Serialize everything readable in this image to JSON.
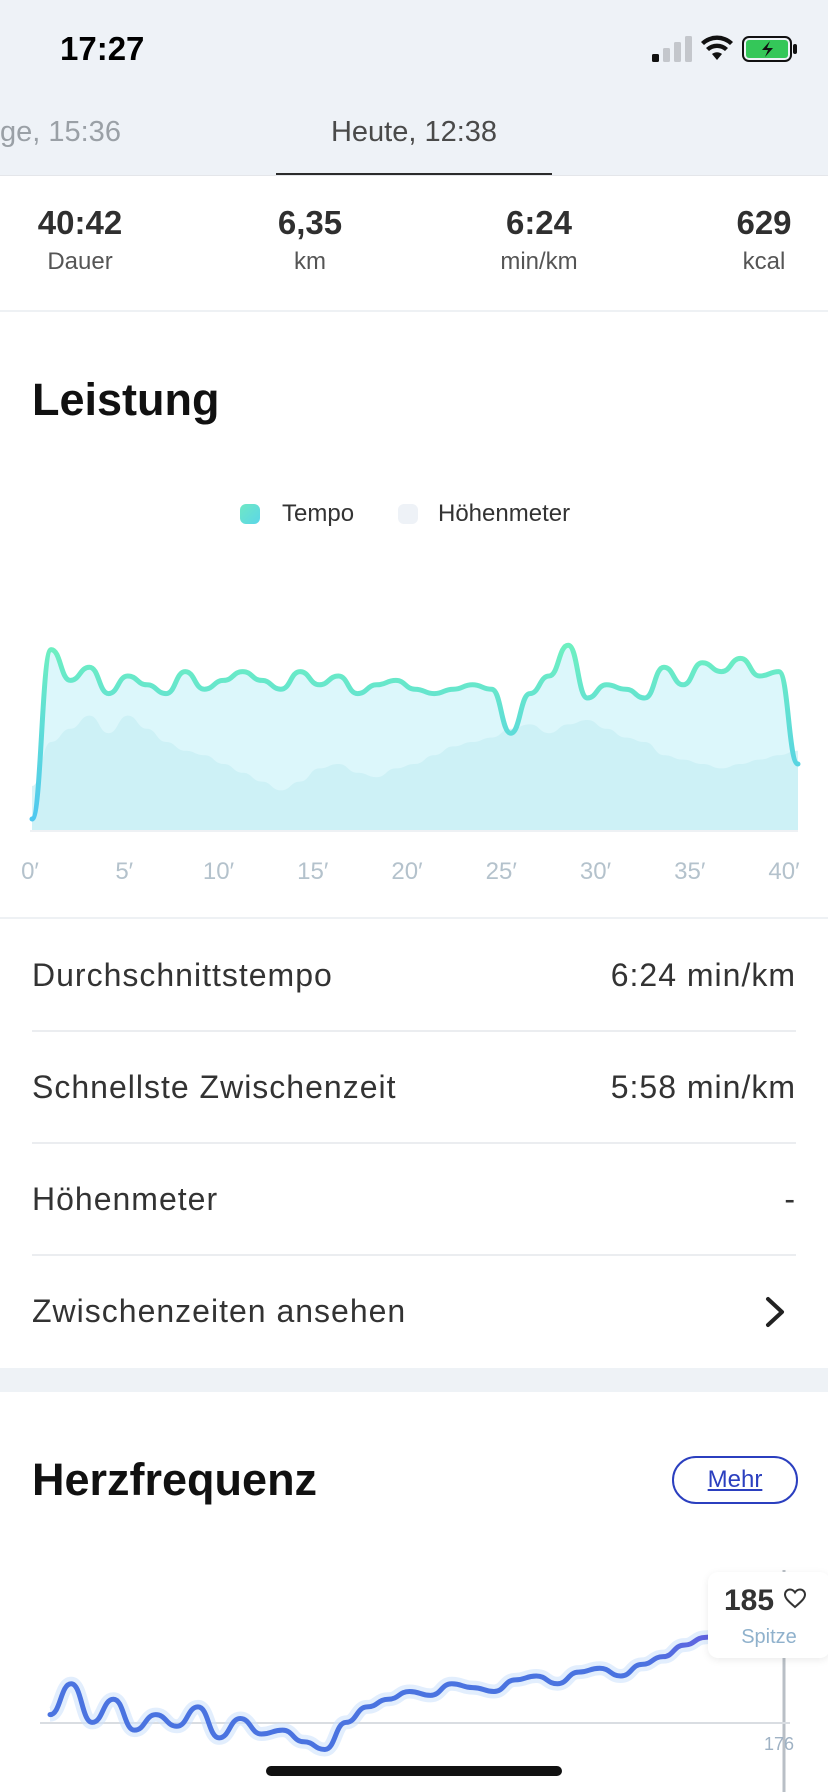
{
  "status_bar": {
    "time": "17:27"
  },
  "tabs": {
    "previous": "ge, 15:36",
    "current": "Heute, 12:38"
  },
  "stats": [
    {
      "value": "40:42",
      "label": "Dauer"
    },
    {
      "value": "6,35",
      "label": "km"
    },
    {
      "value": "6:24",
      "label": "min/km"
    },
    {
      "value": "629",
      "label": "kcal"
    }
  ],
  "performance": {
    "title": "Leistung",
    "legend": {
      "tempo": "Tempo",
      "hoehenmeter": "Höhenmeter"
    },
    "rows": [
      {
        "label": "Durchschnittstempo",
        "value": "6:24 min/km"
      },
      {
        "label": "Schnellste Zwischenzeit",
        "value": "5:58 min/km"
      },
      {
        "label": "Höhenmeter",
        "value": "-"
      },
      {
        "label": "Zwischenzeiten ansehen",
        "value": ""
      }
    ]
  },
  "chart_data": {
    "type": "area",
    "title": "",
    "xlabel": "",
    "ylabel": "",
    "x_tick_labels": [
      "0′",
      "5′",
      "10′",
      "15′",
      "20′",
      "25′",
      "30′",
      "35′",
      "40′"
    ],
    "x": [
      0,
      1,
      2,
      3,
      4,
      5,
      6,
      7,
      8,
      9,
      10,
      11,
      12,
      13,
      14,
      15,
      16,
      17,
      18,
      19,
      20,
      21,
      22,
      23,
      24,
      25,
      26,
      27,
      28,
      29,
      30,
      31,
      32,
      33,
      34,
      35,
      36,
      37,
      38,
      39,
      40
    ],
    "series": [
      {
        "name": "Tempo",
        "color": "#6fe8c4",
        "values": [
          0.05,
          0.82,
          0.68,
          0.74,
          0.62,
          0.7,
          0.66,
          0.62,
          0.72,
          0.64,
          0.68,
          0.72,
          0.68,
          0.64,
          0.72,
          0.66,
          0.7,
          0.62,
          0.66,
          0.68,
          0.64,
          0.62,
          0.64,
          0.66,
          0.64,
          0.44,
          0.62,
          0.7,
          0.84,
          0.6,
          0.66,
          0.64,
          0.6,
          0.74,
          0.66,
          0.76,
          0.72,
          0.78,
          0.7,
          0.72,
          0.3
        ]
      },
      {
        "name": "Höhenmeter",
        "color": "#eef2f7",
        "values": [
          0.2,
          0.4,
          0.46,
          0.52,
          0.44,
          0.52,
          0.46,
          0.4,
          0.36,
          0.34,
          0.3,
          0.26,
          0.22,
          0.18,
          0.22,
          0.28,
          0.3,
          0.26,
          0.24,
          0.28,
          0.3,
          0.34,
          0.38,
          0.4,
          0.42,
          0.46,
          0.48,
          0.44,
          0.48,
          0.5,
          0.46,
          0.42,
          0.4,
          0.34,
          0.32,
          0.3,
          0.28,
          0.3,
          0.32,
          0.34,
          0.36
        ]
      }
    ]
  },
  "heart_rate": {
    "title": "Herzfrequenz",
    "more_button": "Mehr",
    "peak_value": "185",
    "peak_label": "Spitze",
    "ref_value": "176",
    "line_color": "#4a73e0",
    "end_color": "#7b4de0",
    "values": [
      150,
      158,
      148,
      154,
      146,
      150,
      147,
      152,
      144,
      149,
      145,
      146,
      143,
      141,
      148,
      152,
      154,
      156,
      155,
      158,
      157,
      156,
      159,
      160,
      158,
      161,
      162,
      160,
      163,
      165,
      168,
      170,
      172,
      171,
      175,
      176
    ]
  }
}
